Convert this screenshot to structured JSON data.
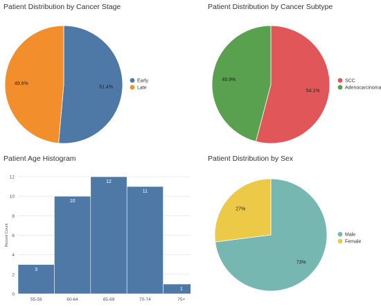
{
  "chart_data": [
    {
      "type": "pie",
      "title": "Patient Distribution by Cancer Stage",
      "slices": [
        {
          "label": "Early",
          "value": 51.4,
          "display": "51.4%",
          "color": "#4e79a7"
        },
        {
          "label": "Late",
          "value": 48.6,
          "display": "48.6%",
          "color": "#f28e2b"
        }
      ],
      "legend_position": "right"
    },
    {
      "type": "pie",
      "title": "Patient Distribution by Cancer Subtype",
      "slices": [
        {
          "label": "SCC",
          "value": 54.1,
          "display": "54.1%",
          "color": "#e15759"
        },
        {
          "label": "Adenocarcinoma",
          "value": 45.9,
          "display": "45.9%",
          "color": "#59a14f"
        }
      ],
      "legend_position": "right"
    },
    {
      "type": "bar",
      "title": "Patient Age Histogram",
      "categories": [
        "55-59",
        "60-64",
        "65-69",
        "70-74",
        "75+"
      ],
      "values": [
        3,
        10,
        12,
        11,
        1
      ],
      "ylabel": "Record Count",
      "xlabel": "",
      "ylim": [
        0,
        12
      ],
      "yticks": [
        0,
        2,
        4,
        6,
        8,
        10,
        12
      ],
      "color": "#4e79a7",
      "grid": true
    },
    {
      "type": "pie",
      "title": "Patient Distribution by Sex",
      "slices": [
        {
          "label": "Male",
          "value": 73,
          "display": "73%",
          "color": "#76b7b2"
        },
        {
          "label": "Female",
          "value": 27,
          "display": "27%",
          "color": "#edc948"
        }
      ],
      "legend_position": "right"
    }
  ]
}
